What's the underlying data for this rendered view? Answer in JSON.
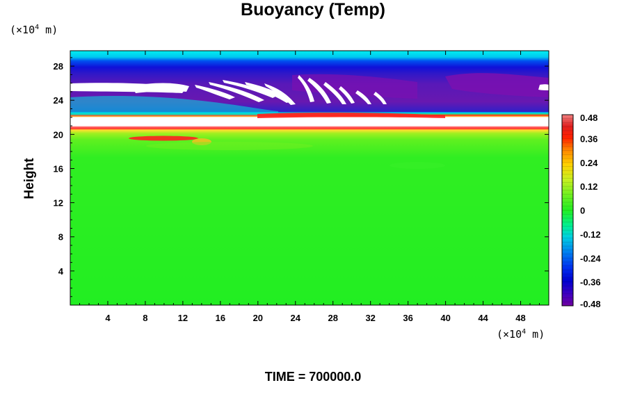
{
  "chart_data": {
    "type": "heatmap",
    "title": "Buoyancy (Temp)",
    "ylabel": "Height",
    "y_unit_base": "(×10",
    "y_unit_exp": "4",
    "y_unit_tail": " m)",
    "x_unit_base": "(×10",
    "x_unit_exp": "4",
    "x_unit_tail": " m)",
    "xlim": [
      0,
      51
    ],
    "ylim": [
      0,
      29.8
    ],
    "x_ticks": [
      4,
      8,
      12,
      16,
      20,
      24,
      28,
      32,
      36,
      40,
      44,
      48
    ],
    "y_ticks": [
      4,
      8,
      12,
      16,
      20,
      24,
      28
    ],
    "x_tick_labels": [
      "4",
      "8",
      "12",
      "16",
      "20",
      "24",
      "28",
      "32",
      "36",
      "40",
      "44",
      "48"
    ],
    "y_tick_labels": [
      "4",
      "8",
      "12",
      "16",
      "20",
      "24",
      "28"
    ],
    "colorbar": {
      "range": [
        -0.48,
        0.48
      ],
      "tick_values": [
        0.48,
        0.36,
        0.24,
        0.12,
        0,
        -0.12,
        -0.24,
        -0.36,
        -0.48
      ],
      "tick_labels": [
        "0.48",
        "0.36",
        "0.24",
        "0.12",
        "0",
        "-0.12",
        "-0.24",
        "-0.36",
        "-0.48"
      ]
    },
    "colors": {
      "background_value": "#22ee22",
      "strong_negative": "#7a10b0",
      "negative": "#1020e0",
      "weak_negative": "#00e0e0",
      "positive": "#ff2020",
      "saturated": "#ffffff"
    }
  },
  "footer": {
    "time_text": "TIME = 700000.0"
  }
}
